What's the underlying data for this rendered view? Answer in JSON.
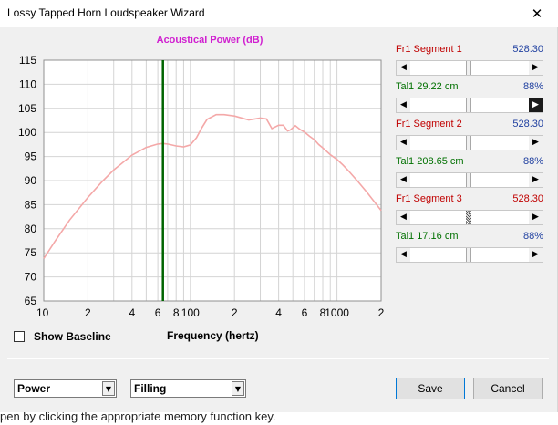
{
  "window": {
    "title": "Lossy Tapped Horn Loudspeaker Wizard",
    "close_glyph": "✕"
  },
  "chart_data": {
    "type": "line",
    "title": "Acoustical Power (dB)",
    "xlabel": "Frequency (hertz)",
    "ylabel": "",
    "x_scale": "log",
    "xlim": [
      10,
      2000
    ],
    "ylim": [
      65,
      115
    ],
    "y_ticks": [
      65,
      70,
      75,
      80,
      85,
      90,
      95,
      100,
      105,
      110,
      115
    ],
    "x_tick_labels": [
      {
        "x": 10,
        "label": "10"
      },
      {
        "x": 20,
        "label": "2"
      },
      {
        "x": 40,
        "label": "4"
      },
      {
        "x": 60,
        "label": "6"
      },
      {
        "x": 80,
        "label": "8"
      },
      {
        "x": 100,
        "label": "100"
      },
      {
        "x": 200,
        "label": "2"
      },
      {
        "x": 400,
        "label": "4"
      },
      {
        "x": 600,
        "label": "6"
      },
      {
        "x": 800,
        "label": "8"
      },
      {
        "x": 1000,
        "label": "1000"
      },
      {
        "x": 2000,
        "label": "2"
      }
    ],
    "grid": true,
    "marker_x": 65,
    "colors": {
      "curve": "#f4a8a8",
      "marker": "#006400",
      "title": "#d020d0"
    },
    "series": [
      {
        "values_x": [
          10,
          12,
          15,
          20,
          25,
          30,
          40,
          50,
          60,
          65,
          70,
          80,
          90,
          100,
          110,
          120,
          130,
          150,
          170,
          200,
          250,
          300,
          330,
          360,
          400,
          430,
          460,
          480,
          520,
          560,
          600,
          650,
          700,
          750,
          800,
          900,
          1000,
          1100,
          1200,
          1400,
          1600,
          1800,
          2000
        ],
        "values_y": [
          73.8,
          77.5,
          81.8,
          86.5,
          89.8,
          92.2,
          95.3,
          96.9,
          97.6,
          97.7,
          97.6,
          97.2,
          97.0,
          97.4,
          98.9,
          101.0,
          102.7,
          103.7,
          103.7,
          103.4,
          102.6,
          103.0,
          102.8,
          100.8,
          101.5,
          101.5,
          100.3,
          100.5,
          101.4,
          100.6,
          100.1,
          99.2,
          98.5,
          97.5,
          96.8,
          95.4,
          94.4,
          93.2,
          92.0,
          89.7,
          87.6,
          85.6,
          83.8
        ]
      }
    ]
  },
  "baseline": {
    "label": "Show Baseline"
  },
  "segments": [
    {
      "name": "Fr1  Segment 1",
      "value": "528.30",
      "name_color": "red",
      "value_color": "blue",
      "thumb": 0.49,
      "thumb_style": "normal",
      "right_dark": false
    },
    {
      "name": "Tal1  29.22 cm",
      "value": "88%",
      "name_color": "green",
      "value_color": "blue",
      "thumb": 0.49,
      "thumb_style": "normal",
      "right_dark": true
    },
    {
      "name": "Fr1  Segment 2",
      "value": "528.30",
      "name_color": "red",
      "value_color": "blue",
      "thumb": 0.49,
      "thumb_style": "normal",
      "right_dark": false
    },
    {
      "name": "Tal1  208.65 cm",
      "value": "88%",
      "name_color": "green",
      "value_color": "blue",
      "thumb": 0.49,
      "thumb_style": "normal",
      "right_dark": false
    },
    {
      "name": "Fr1  Segment 3",
      "value": "528.30",
      "name_color": "red",
      "value_color": "red",
      "thumb": 0.49,
      "thumb_style": "hatched",
      "right_dark": false
    },
    {
      "name": "Tal1  17.16 cm",
      "value": "88%",
      "name_color": "green",
      "value_color": "blue",
      "thumb": 0.49,
      "thumb_style": "normal",
      "right_dark": false
    }
  ],
  "controls": {
    "power_select": "Power",
    "filling_select": "Filling",
    "save_label": "Save",
    "cancel_label": "Cancel"
  },
  "background_text": "pen by clicking the appropriate memory function key."
}
